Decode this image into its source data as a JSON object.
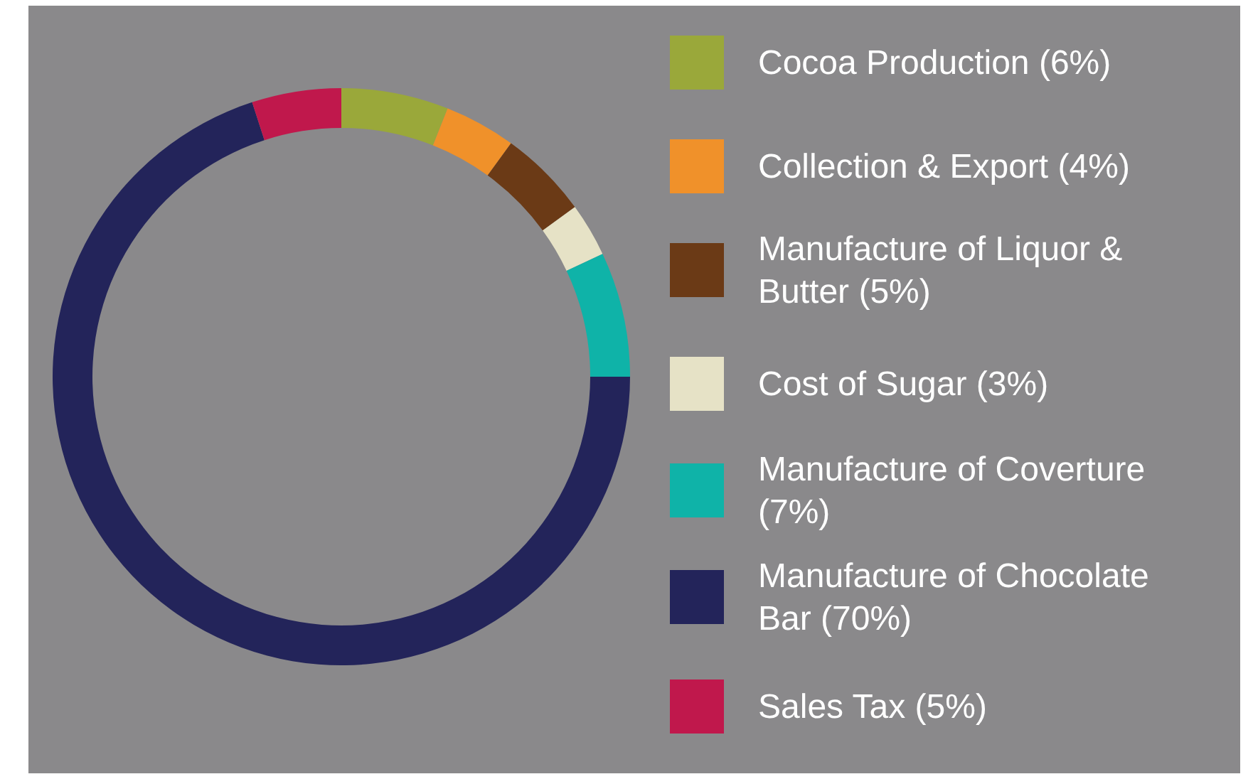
{
  "chart_data": {
    "type": "donut",
    "categories": [
      "Cocoa Production (6%)",
      "Collection & Export (4%)",
      "Manufacture of Liquor & Butter (5%)",
      "Cost of Sugar (3%)",
      "Manufacture of Coverture (7%)",
      "Manufacture of Chocolate Bar (70%)",
      "Sales Tax (5%)"
    ],
    "values": [
      6,
      4,
      5,
      3,
      7,
      70,
      5
    ],
    "colors": [
      "#9aa83a",
      "#f0912a",
      "#6b3a16",
      "#e6e2c6",
      "#0fb3a8",
      "#23245a",
      "#c0184c"
    ],
    "legend": "right"
  }
}
